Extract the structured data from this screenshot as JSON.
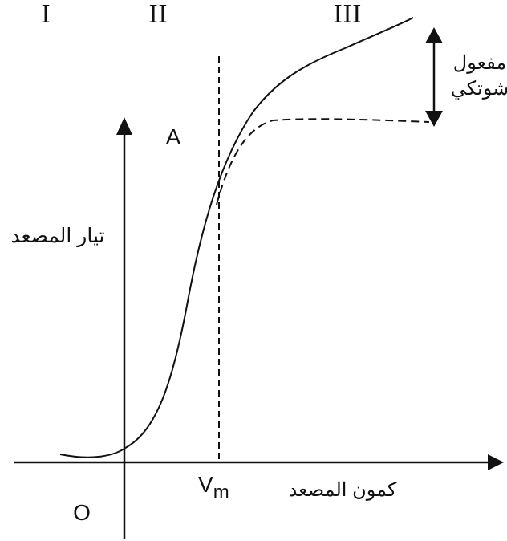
{
  "diagram": {
    "regions": [
      "I",
      "II",
      "III"
    ],
    "axis_y_end_label": "A",
    "y_axis_label": "تيار المصعد",
    "x_axis_label": "كمون المصعد",
    "origin_label": "O",
    "vm_label": "V",
    "vm_subscript": "m",
    "schottky_label_line1": "مفعول",
    "schottky_label_line2": "شوتكي",
    "colors": {
      "ink": "#111111",
      "background": "#ffffff"
    }
  }
}
